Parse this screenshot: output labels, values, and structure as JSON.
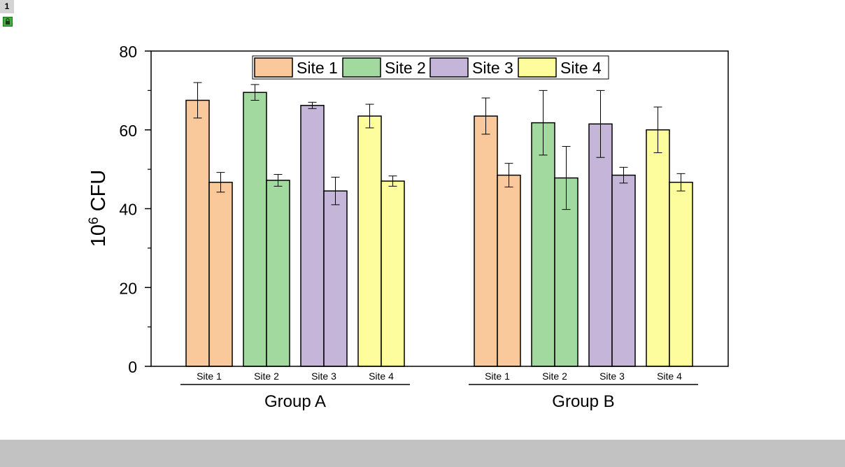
{
  "page_tab": "1",
  "icons": {
    "lock": "lock-icon"
  },
  "colors": {
    "site1": "#f9c89b",
    "site2": "#a2d99e",
    "site3": "#c4b5d9",
    "site4": "#fdfd9e"
  },
  "chart_data": {
    "type": "bar",
    "ylabel_base": "10",
    "ylabel_sup": "6",
    "ylabel_text": " CFU",
    "ylim": [
      0,
      80
    ],
    "yticks": [
      "0",
      "20",
      "40",
      "60",
      "80"
    ],
    "legend": {
      "placement": "top-center",
      "entries": [
        "Site 1",
        "Site 2",
        "Site 3",
        "Site 4"
      ]
    },
    "groups": [
      {
        "name": "Group A",
        "categories": [
          "Site 1",
          "Site 2",
          "Site 3",
          "Site 4"
        ],
        "bars": [
          {
            "site": 1,
            "value": 67.5,
            "err": 4.5
          },
          {
            "site": 1,
            "value": 46.7,
            "err": 2.5
          },
          {
            "site": 2,
            "value": 69.5,
            "err": 2.0
          },
          {
            "site": 2,
            "value": 47.2,
            "err": 1.5
          },
          {
            "site": 3,
            "value": 66.2,
            "err": 0.8
          },
          {
            "site": 3,
            "value": 44.5,
            "err": 3.5
          },
          {
            "site": 4,
            "value": 63.5,
            "err": 3.0
          },
          {
            "site": 4,
            "value": 47.0,
            "err": 1.3
          }
        ]
      },
      {
        "name": "Group B",
        "categories": [
          "Site 1",
          "Site 2",
          "Site 3",
          "Site 4"
        ],
        "bars": [
          {
            "site": 1,
            "value": 63.5,
            "err": 4.6
          },
          {
            "site": 1,
            "value": 48.5,
            "err": 3.0
          },
          {
            "site": 2,
            "value": 61.8,
            "err": 8.2
          },
          {
            "site": 2,
            "value": 47.8,
            "err": 8.0
          },
          {
            "site": 3,
            "value": 61.5,
            "err": 8.5
          },
          {
            "site": 3,
            "value": 48.5,
            "err": 2.0
          },
          {
            "site": 4,
            "value": 60.0,
            "err": 5.8
          },
          {
            "site": 4,
            "value": 46.7,
            "err": 2.2
          }
        ]
      }
    ]
  }
}
